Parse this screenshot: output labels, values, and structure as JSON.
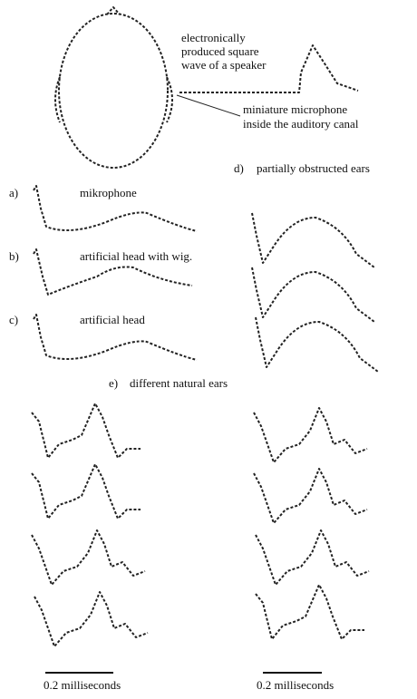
{
  "speaker_label": [
    "electronically",
    "produced square",
    "wave of a speaker"
  ],
  "mic_label": [
    "miniature microphone",
    "inside the auditory canal"
  ],
  "panels": [
    {
      "letter": "a)",
      "label": "mikrophone"
    },
    {
      "letter": "b)",
      "label": "artificial head with wig."
    },
    {
      "letter": "c)",
      "label": "artificial head"
    }
  ],
  "d": {
    "letter": "d)",
    "label": "partially obstructed ears"
  },
  "e": {
    "letter": "e)",
    "label": "different natural ears"
  },
  "scale_bars": [
    "0.2 milliseconds",
    "0.2 milliseconds"
  ]
}
